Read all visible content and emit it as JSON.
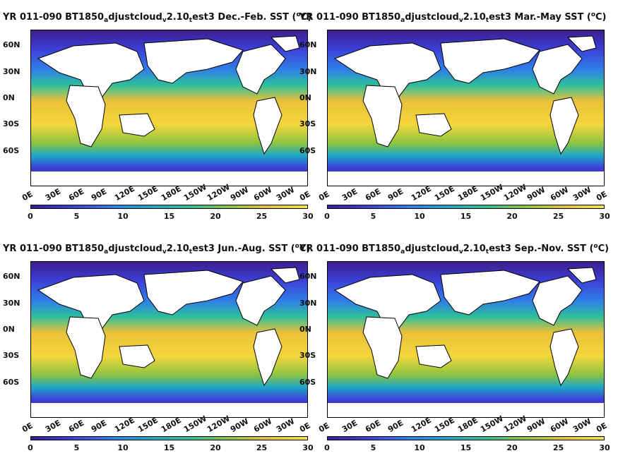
{
  "figure": {
    "panels": [
      {
        "title_parts": [
          "YR 011-090 BT1850",
          "a",
          "djustcloud",
          "v",
          "2.10",
          "t",
          "est3 Dec.-Feb. SST (",
          "o",
          "C)"
        ]
      },
      {
        "title_parts": [
          "YR 011-090 BT1850",
          "a",
          "djustcloud",
          "v",
          "2.10",
          "t",
          "est3 Mar.-May SST (",
          "o",
          "C)"
        ]
      },
      {
        "title_parts": [
          "YR 011-090 BT1850",
          "a",
          "djustcloud",
          "v",
          "2.10",
          "t",
          "est3 Jun.-Aug. SST (",
          "o",
          "C)"
        ]
      },
      {
        "title_parts": [
          "YR 011-090 BT1850",
          "a",
          "djustcloud",
          "v",
          "2.10",
          "t",
          "est3 Sep.-Nov. SST (",
          "o",
          "C)"
        ]
      }
    ],
    "lat_ticks": [
      "60N",
      "30N",
      "0N",
      "30S",
      "60S"
    ],
    "lon_ticks": [
      "0E",
      "30E",
      "60E",
      "90E",
      "120E",
      "150E",
      "180E",
      "150W",
      "120W",
      "90W",
      "60W",
      "30W",
      "0E"
    ],
    "colorbar_ticks": [
      "0",
      "5",
      "10",
      "15",
      "20",
      "25",
      "30"
    ],
    "colormap": [
      "#3b1f8f",
      "#3d3fd6",
      "#2f7fe8",
      "#1ea7c9",
      "#2dbf9a",
      "#8bc53f",
      "#e8c13a",
      "#f5e33a"
    ]
  }
}
